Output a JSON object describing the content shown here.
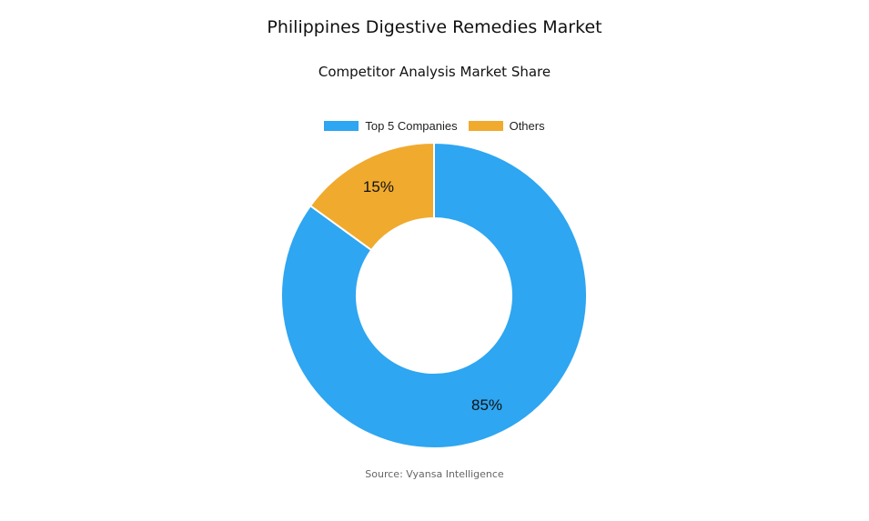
{
  "chart_data": {
    "type": "pie",
    "donut": true,
    "title": "Philippines Digestive Remedies Market",
    "subtitle": "Competitor Analysis Market Share",
    "categories": [
      "Top 5 Companies",
      "Others"
    ],
    "values": [
      85,
      15
    ],
    "data_labels": [
      "85%",
      "15%"
    ],
    "colors": [
      "#2EA6F1",
      "#F0AA2E"
    ],
    "legend_position": "top"
  },
  "source": "Source: Vyansa Intelligence"
}
